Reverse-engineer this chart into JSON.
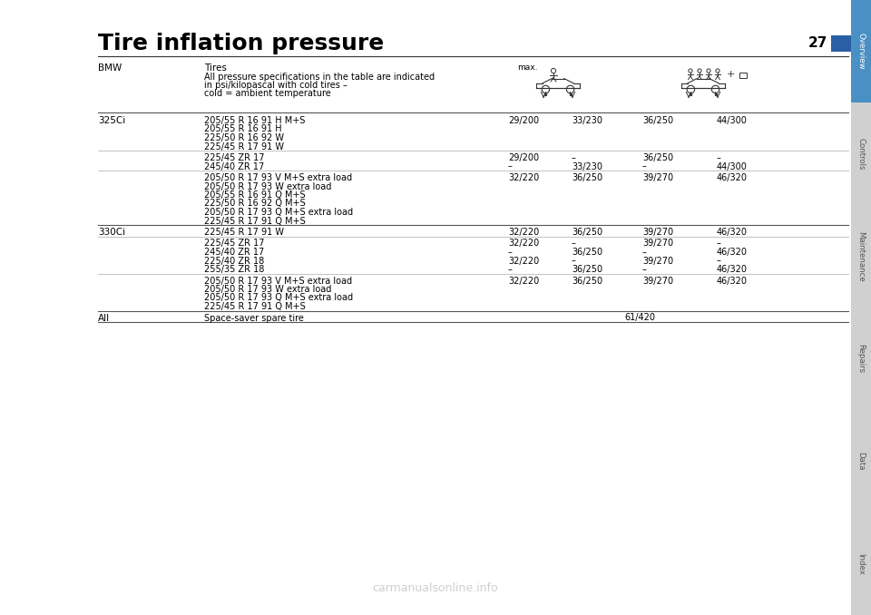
{
  "title": "Tire inflation pressure",
  "page_number": "27",
  "background_color": "#ffffff",
  "title_font_size": 18,
  "sidebar_tabs": [
    {
      "label": "Overview",
      "color": "#4a90c4",
      "text_color": "#ffffff"
    },
    {
      "label": "Controls",
      "color": "#d0d0d0",
      "text_color": "#555555"
    },
    {
      "label": "Maintenance",
      "color": "#d0d0d0",
      "text_color": "#555555"
    },
    {
      "label": "Repairs",
      "color": "#d0d0d0",
      "text_color": "#555555"
    },
    {
      "label": "Data",
      "color": "#d0d0d0",
      "text_color": "#555555"
    },
    {
      "label": "Index",
      "color": "#d0d0d0",
      "text_color": "#555555"
    }
  ],
  "watermark": "carmanualsonline.info",
  "watermark_color": "#bbbbbb",
  "dash": "–",
  "sections": [
    {
      "model": "BMW",
      "sub_rows": [
        {
          "tires": "Tires\nAll pressure specifications in the table are indicated\nin psi/kilopascal with cold tires –\ncold = ambient temperature",
          "c1": "",
          "c2": "",
          "c3": "",
          "c4": "",
          "header_row": true
        }
      ]
    },
    {
      "model": "325Ci",
      "sub_rows": [
        {
          "tires": "205/55 R 16 91 H M+S\n205/55 R 16 91 H\n225/50 R 16 92 W\n225/45 R 17 91 W",
          "c1": "29/200",
          "c2": "33/230",
          "c3": "36/250",
          "c4": "44/300",
          "header_row": false
        },
        {
          "tires": "225/45 ZR 17\n245/40 ZR 17",
          "c1": "29/200\n–",
          "c2": "–\n33/230",
          "c3": "36/250\n–",
          "c4": "–\n44/300",
          "header_row": false
        },
        {
          "tires": "205/50 R 17 93 V M+S extra load\n205/50 R 17 93 W extra load\n205/55 R 16 91 Q M+S\n225/50 R 16 92 Q M+S\n205/50 R 17 93 Q M+S extra load\n225/45 R 17 91 Q M+S",
          "c1": "32/220",
          "c2": "36/250",
          "c3": "39/270",
          "c4": "46/320",
          "header_row": false
        }
      ]
    },
    {
      "model": "330Ci",
      "sub_rows": [
        {
          "tires": "225/45 R 17 91 W",
          "c1": "32/220",
          "c2": "36/250",
          "c3": "39/270",
          "c4": "46/320",
          "header_row": false
        },
        {
          "tires": "225/45 ZR 17\n245/40 ZR 17\n225/40 ZR 18\n255/35 ZR 18",
          "c1": "32/220\n–\n32/220\n–",
          "c2": "–\n36/250\n–\n36/250",
          "c3": "39/270\n–\n39/270\n–",
          "c4": "–\n46/320\n–\n46/320",
          "header_row": false
        },
        {
          "tires": "205/50 R 17 93 V M+S extra load\n205/50 R 17 93 W extra load\n205/50 R 17 93 Q M+S extra load\n225/45 R 17 91 Q M+S",
          "c1": "32/220",
          "c2": "36/250",
          "c3": "39/270",
          "c4": "46/320",
          "header_row": false
        }
      ]
    },
    {
      "model": "All",
      "sub_rows": [
        {
          "tires": "Space-saver spare tire",
          "c1": "",
          "c2": "61/420",
          "c3": "",
          "c4": "",
          "header_row": false,
          "span_cols": true
        }
      ]
    }
  ]
}
